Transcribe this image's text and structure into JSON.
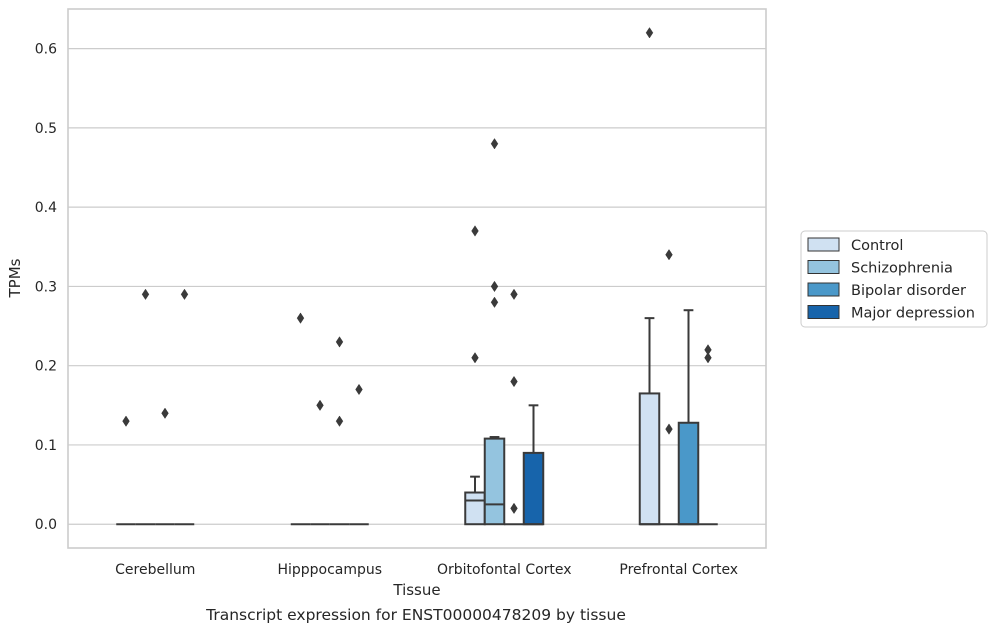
{
  "figure": {
    "caption": "Transcript expression for ENST00000478209 by tissue"
  },
  "colors": {
    "Control": "#d0e1f2",
    "Schizophrenia": "#94c4df",
    "Bipolar disorder": "#4a98c9",
    "Major depression": "#1764ab",
    "grid": "#cccccc",
    "edge": "#3a3a3a"
  },
  "chart_data": {
    "type": "box",
    "xlabel": "Tissue",
    "ylabel": "TPMs",
    "ylim": [
      -0.03,
      0.65
    ],
    "yticks": [
      0.0,
      0.1,
      0.2,
      0.3,
      0.4,
      0.5,
      0.6
    ],
    "ytick_labels": [
      "0.0",
      "0.1",
      "0.2",
      "0.3",
      "0.4",
      "0.5",
      "0.6"
    ],
    "grid": true,
    "legend_position": "right",
    "categories": [
      "Cerebellum",
      "Hipppocampus",
      "Orbitofontal Cortex",
      "Prefrontal Cortex"
    ],
    "series": [
      {
        "name": "Control",
        "boxes": [
          {
            "q1": 0,
            "median": 0,
            "q3": 0,
            "whisker_low": 0,
            "whisker_high": 0,
            "outliers": [
              0.13
            ]
          },
          {
            "q1": 0,
            "median": 0,
            "q3": 0,
            "whisker_low": 0,
            "whisker_high": 0,
            "outliers": [
              0.26
            ]
          },
          {
            "q1": 0,
            "median": 0.03,
            "q3": 0.04,
            "whisker_low": 0,
            "whisker_high": 0.06,
            "outliers": [
              0.37,
              0.21
            ]
          },
          {
            "q1": 0,
            "median": 0,
            "q3": 0.165,
            "whisker_low": 0,
            "whisker_high": 0.26,
            "outliers": [
              0.62
            ]
          }
        ]
      },
      {
        "name": "Schizophrenia",
        "boxes": [
          {
            "q1": 0,
            "median": 0,
            "q3": 0,
            "whisker_low": 0,
            "whisker_high": 0,
            "outliers": [
              0.29
            ]
          },
          {
            "q1": 0,
            "median": 0,
            "q3": 0,
            "whisker_low": 0,
            "whisker_high": 0,
            "outliers": [
              0.15
            ]
          },
          {
            "q1": 0,
            "median": 0.025,
            "q3": 0.108,
            "whisker_low": 0,
            "whisker_high": 0.11,
            "outliers": [
              0.48,
              0.3,
              0.28
            ]
          },
          {
            "q1": 0,
            "median": 0,
            "q3": 0,
            "whisker_low": 0,
            "whisker_high": 0,
            "outliers": [
              0.34,
              0.12
            ]
          }
        ]
      },
      {
        "name": "Bipolar disorder",
        "boxes": [
          {
            "q1": 0,
            "median": 0,
            "q3": 0,
            "whisker_low": 0,
            "whisker_high": 0,
            "outliers": [
              0.14
            ]
          },
          {
            "q1": 0,
            "median": 0,
            "q3": 0,
            "whisker_low": 0,
            "whisker_high": 0,
            "outliers": [
              0.23,
              0.13
            ]
          },
          {
            "q1": 0,
            "median": 0,
            "q3": 0,
            "whisker_low": 0,
            "whisker_high": 0,
            "outliers": [
              0.29,
              0.18,
              0.02
            ]
          },
          {
            "q1": 0,
            "median": 0,
            "q3": 0.128,
            "whisker_low": 0,
            "whisker_high": 0.27,
            "outliers": []
          }
        ]
      },
      {
        "name": "Major depression",
        "boxes": [
          {
            "q1": 0,
            "median": 0,
            "q3": 0,
            "whisker_low": 0,
            "whisker_high": 0,
            "outliers": [
              0.29
            ]
          },
          {
            "q1": 0,
            "median": 0,
            "q3": 0,
            "whisker_low": 0,
            "whisker_high": 0,
            "outliers": [
              0.17
            ]
          },
          {
            "q1": 0,
            "median": 0,
            "q3": 0.09,
            "whisker_low": 0,
            "whisker_high": 0.15,
            "outliers": []
          },
          {
            "q1": 0,
            "median": 0,
            "q3": 0,
            "whisker_low": 0,
            "whisker_high": 0,
            "outliers": [
              0.22,
              0.21
            ]
          }
        ]
      }
    ]
  }
}
